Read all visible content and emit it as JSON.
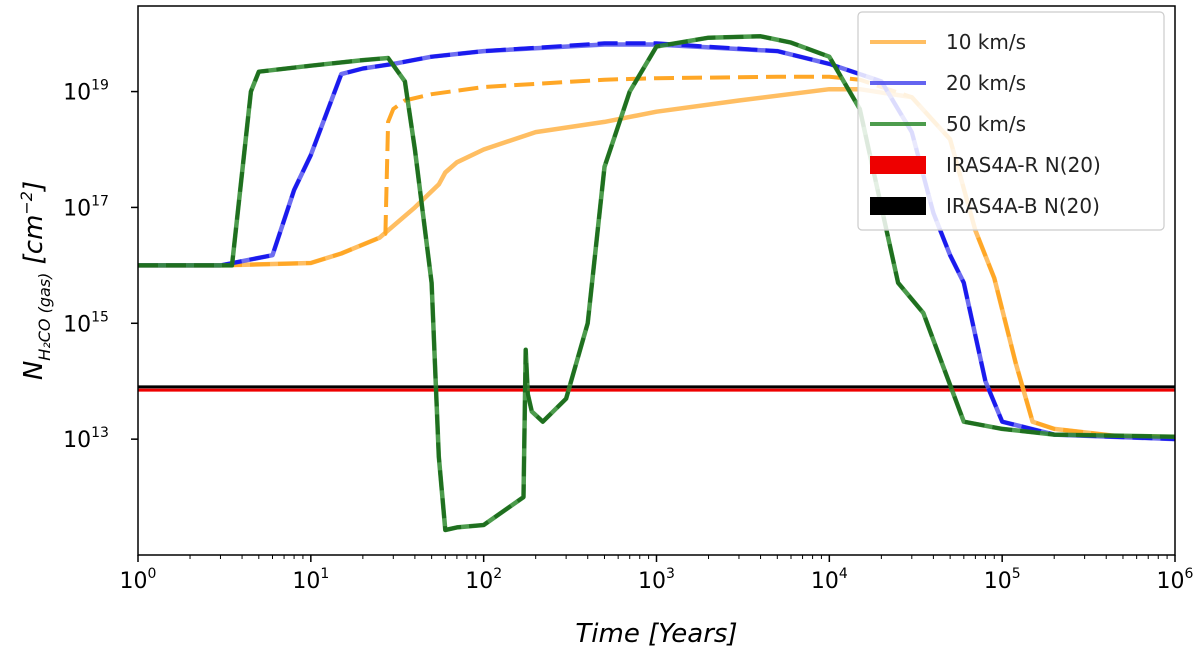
{
  "chart_data": {
    "type": "line",
    "title": "",
    "xlabel": "Time [Years]",
    "ylabel": "N_H2CO (gas) [cm^-2]",
    "xscale": "log",
    "yscale": "log",
    "xlim": [
      1,
      1000000
    ],
    "ylim": [
      100000000000.0,
      3e+20
    ],
    "grid": false,
    "legend_position": "top-right",
    "x_ticks": [
      {
        "base": "10",
        "exp": "0",
        "value": 1
      },
      {
        "base": "10",
        "exp": "1",
        "value": 10
      },
      {
        "base": "10",
        "exp": "2",
        "value": 100
      },
      {
        "base": "10",
        "exp": "3",
        "value": 1000
      },
      {
        "base": "10",
        "exp": "4",
        "value": 10000
      },
      {
        "base": "10",
        "exp": "5",
        "value": 100000
      },
      {
        "base": "10",
        "exp": "6",
        "value": 1000000
      }
    ],
    "y_ticks": [
      {
        "base": "10",
        "exp": "13",
        "value": 10000000000000.0
      },
      {
        "base": "10",
        "exp": "15",
        "value": 1000000000000000.0
      },
      {
        "base": "10",
        "exp": "17",
        "value": 1e+17
      },
      {
        "base": "10",
        "exp": "19",
        "value": 1e+19
      }
    ],
    "series": [
      {
        "name": "10 km/s",
        "color": "#ffb347",
        "style": "solid",
        "x": [
          1,
          3,
          10,
          15,
          25,
          40,
          55,
          60,
          70,
          100,
          200,
          500,
          1000,
          3000,
          10000,
          15000,
          30000,
          50000,
          70000,
          90000,
          120000,
          150000,
          200000,
          500000,
          1000000
        ],
        "y": [
          1e+16,
          1e+16,
          1.1e+16,
          1.6e+16,
          3e+16,
          1e+17,
          2.5e+17,
          4e+17,
          6e+17,
          1e+18,
          2e+18,
          3e+18,
          4.5e+18,
          7e+18,
          1.1e+19,
          1.1e+19,
          8e+18,
          1.5e+18,
          4e+16,
          6000000000000000.0,
          200000000000000.0,
          20000000000000.0,
          15000000000000.0,
          11000000000000.0,
          11000000000000.0
        ]
      },
      {
        "name": "10 km/s (dashed)",
        "color": "#ffa726",
        "style": "dashed",
        "x": [
          1,
          3,
          10,
          15,
          25,
          27,
          28,
          30,
          35,
          50,
          100,
          500,
          1000,
          5000,
          10000,
          15000,
          30000,
          50000,
          70000,
          90000,
          120000,
          150000,
          200000,
          500000,
          1000000
        ],
        "y": [
          1e+16,
          1e+16,
          1.1e+16,
          1.6e+16,
          3e+16,
          3.5e+16,
          3e+18,
          5e+18,
          7e+18,
          9e+18,
          1.2e+19,
          1.6e+19,
          1.7e+19,
          1.8e+19,
          1.8e+19,
          1.6e+19,
          8e+18,
          1.5e+18,
          4e+16,
          6000000000000000.0,
          200000000000000.0,
          20000000000000.0,
          15000000000000.0,
          11000000000000.0,
          11000000000000.0
        ]
      },
      {
        "name": "20 km/s",
        "color": "#5555ee",
        "style": "solid",
        "x": [
          1,
          3,
          6,
          8,
          10,
          15,
          20,
          30,
          50,
          100,
          500,
          1000,
          5000,
          10000,
          20000,
          30000,
          40000,
          50000,
          60000,
          80000,
          100000,
          200000,
          1000000
        ],
        "y": [
          1e+16,
          1e+16,
          1.5e+16,
          2e+17,
          8e+17,
          2e+19,
          2.5e+19,
          3e+19,
          4e+19,
          5e+19,
          6.5e+19,
          6.5e+19,
          5e+19,
          3e+19,
          1.5e+19,
          2e+18,
          8e+16,
          1.5e+16,
          5000000000000000.0,
          100000000000000.0,
          20000000000000.0,
          12000000000000.0,
          10000000000000.0
        ]
      },
      {
        "name": "20 km/s (dashed)",
        "color": "#1a1aee",
        "style": "dashed",
        "x": [
          1,
          3,
          6,
          8,
          10,
          15,
          20,
          30,
          50,
          100,
          500,
          1000,
          5000,
          10000,
          20000,
          30000,
          40000,
          50000,
          60000,
          80000,
          100000,
          200000,
          1000000
        ],
        "y": [
          1e+16,
          1e+16,
          1.5e+16,
          2e+17,
          8e+17,
          2e+19,
          2.5e+19,
          3e+19,
          4e+19,
          5e+19,
          6.8e+19,
          6.8e+19,
          5e+19,
          3e+19,
          1.5e+19,
          2e+18,
          8e+16,
          1.5e+16,
          5000000000000000.0,
          100000000000000.0,
          20000000000000.0,
          12000000000000.0,
          10000000000000.0
        ]
      },
      {
        "name": "50 km/s",
        "color": "#2e8b2e",
        "style": "solid",
        "x": [
          1,
          3.5,
          4.5,
          5,
          10,
          20,
          28,
          35,
          40,
          50,
          55,
          60,
          70,
          100,
          170,
          175,
          180,
          190,
          220,
          300,
          400,
          500,
          700,
          1000,
          2000,
          4000,
          6000,
          10000,
          15000,
          25000,
          35000,
          45000,
          60000,
          100000,
          200000,
          1000000
        ],
        "y": [
          1e+16,
          1e+16,
          1e+19,
          2.2e+19,
          2.8e+19,
          3.5e+19,
          3.8e+19,
          1.5e+19,
          1e+18,
          5000000000000000.0,
          5000000000000.0,
          270000000000.0,
          300000000000.0,
          330000000000.0,
          1000000000000.0,
          350000000000000.0,
          60000000000000.0,
          30000000000000.0,
          20000000000000.0,
          50000000000000.0,
          1000000000000000.0,
          5e+17,
          1e+19,
          6e+19,
          8.5e+19,
          9e+19,
          7e+19,
          4e+19,
          5e+18,
          5000000000000000.0,
          1500000000000000.0,
          200000000000000.0,
          20000000000000.0,
          15000000000000.0,
          12000000000000.0,
          11000000000000.0
        ]
      }
    ],
    "hlines": [
      {
        "name": "IRAS4A-R N(20)",
        "color": "#ee0000",
        "y": 70000000000000.0
      },
      {
        "name": "IRAS4A-B N(20)",
        "color": "#000000",
        "y": 80000000000000.0
      }
    ],
    "legend": [
      {
        "label": "10 km/s",
        "color": "#ffb347",
        "style": "line"
      },
      {
        "label": "20 km/s",
        "color": "#4a4aee",
        "style": "line"
      },
      {
        "label": "50 km/s",
        "color": "#2e8b2e",
        "style": "line"
      },
      {
        "label": "IRAS4A-R N(20)",
        "color": "#ee0000",
        "style": "patch"
      },
      {
        "label": "IRAS4A-B N(20)",
        "color": "#000000",
        "style": "patch"
      }
    ]
  }
}
